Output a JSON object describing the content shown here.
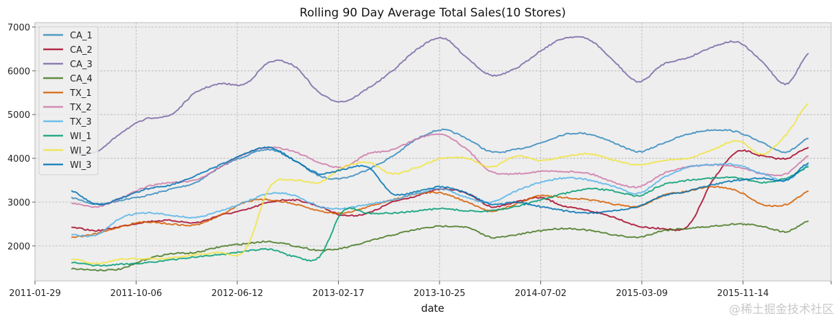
{
  "chart_data": {
    "type": "line",
    "title": "Rolling 90 Day Average Total Sales(10 Stores)",
    "xlabel": "date",
    "ylabel": "",
    "x_type": "date",
    "xlim": [
      "2011-01-29",
      "2016-06-19"
    ],
    "ylim": [
      1200,
      7100
    ],
    "yticks": [
      2000,
      3000,
      4000,
      5000,
      6000,
      7000
    ],
    "xticks": [
      "2011-01-29",
      "2011-10-06",
      "2012-06-12",
      "2013-02-17",
      "2013-10-25",
      "2014-07-02",
      "2015-03-09",
      "2015-11-14"
    ],
    "grid": true,
    "legend_position": "top-left",
    "x": [
      "2011-04-29",
      "2011-07-01",
      "2011-09-01",
      "2011-11-01",
      "2012-01-01",
      "2012-03-01",
      "2012-05-01",
      "2012-07-01",
      "2012-09-01",
      "2012-11-01",
      "2013-01-01",
      "2013-03-01",
      "2013-05-01",
      "2013-07-01",
      "2013-09-01",
      "2013-11-01",
      "2014-01-01",
      "2014-03-01",
      "2014-05-01",
      "2014-07-01",
      "2014-09-01",
      "2014-11-01",
      "2015-01-01",
      "2015-03-01",
      "2015-05-01",
      "2015-07-01",
      "2015-09-01",
      "2015-11-01",
      "2016-01-01",
      "2016-03-01",
      "2016-04-24"
    ],
    "series": [
      {
        "name": "CA_1",
        "color": "#348abd",
        "values": [
          3100,
          2950,
          3050,
          3150,
          3300,
          3450,
          3800,
          4050,
          4200,
          3950,
          3600,
          3550,
          3750,
          4050,
          4450,
          4650,
          4450,
          4150,
          4200,
          4350,
          4550,
          4550,
          4350,
          4150,
          4350,
          4550,
          4650,
          4600,
          4350,
          4150,
          4450
        ]
      },
      {
        "name": "CA_2",
        "color": "#a60628",
        "values": [
          2420,
          2350,
          2450,
          2550,
          2580,
          2530,
          2700,
          2820,
          3000,
          3050,
          2900,
          2700,
          2750,
          3000,
          3150,
          3300,
          3200,
          2900,
          3000,
          3100,
          2900,
          2800,
          2650,
          2450,
          2400,
          2450,
          3500,
          4150,
          4050,
          4000,
          4250
        ]
      },
      {
        "name": "CA_3",
        "color": "#7a68a6",
        "values": [
          4100,
          4150,
          4600,
          4900,
          5000,
          5500,
          5700,
          5700,
          6200,
          6100,
          5500,
          5300,
          5600,
          6000,
          6500,
          6750,
          6300,
          5900,
          6050,
          6450,
          6750,
          6700,
          6200,
          5750,
          6150,
          6300,
          6550,
          6650,
          6200,
          5700,
          6400
        ]
      },
      {
        "name": "CA_4",
        "color": "#467821",
        "values": [
          1480,
          1450,
          1480,
          1700,
          1820,
          1850,
          1980,
          2050,
          2100,
          2000,
          1900,
          1950,
          2100,
          2250,
          2380,
          2450,
          2420,
          2200,
          2250,
          2350,
          2400,
          2350,
          2250,
          2200,
          2350,
          2400,
          2450,
          2500,
          2450,
          2330,
          2570
        ]
      },
      {
        "name": "TX_1",
        "color": "#d55e00",
        "values": [
          2200,
          2280,
          2450,
          2550,
          2500,
          2480,
          2700,
          3000,
          3050,
          2950,
          2800,
          2750,
          2900,
          3050,
          3200,
          3200,
          3000,
          2800,
          2950,
          3150,
          3100,
          3050,
          2950,
          2900,
          3150,
          3250,
          3350,
          3250,
          2950,
          2950,
          3250
        ]
      },
      {
        "name": "TX_2",
        "color": "#cc79a7",
        "values": [
          2970,
          2900,
          3100,
          3350,
          3450,
          3500,
          3800,
          4100,
          4250,
          4150,
          3900,
          3800,
          4100,
          4200,
          4450,
          4550,
          4200,
          3700,
          3650,
          3700,
          3700,
          3650,
          3450,
          3350,
          3650,
          3800,
          3850,
          3800,
          3650,
          3650,
          4050
        ]
      },
      {
        "name": "TX_3",
        "color": "#56b4e9",
        "values": [
          2250,
          2250,
          2650,
          2750,
          2700,
          2650,
          2800,
          3000,
          3200,
          3150,
          2900,
          2850,
          2950,
          3050,
          3200,
          3300,
          3100,
          3000,
          3250,
          3450,
          3550,
          3500,
          3350,
          3200,
          3550,
          3800,
          3850,
          3850,
          3650,
          3500,
          3850
        ]
      },
      {
        "name": "WI_1",
        "color": "#009e73",
        "values": [
          1620,
          1550,
          1580,
          1620,
          1680,
          1750,
          1800,
          1880,
          1920,
          1750,
          1750,
          2800,
          2750,
          2750,
          2800,
          2850,
          2800,
          2800,
          2900,
          3050,
          3200,
          3300,
          3250,
          3150,
          3400,
          3500,
          3550,
          3550,
          3450,
          3550,
          3800
        ]
      },
      {
        "name": "WI_2",
        "color": "#f0e442",
        "values": [
          1700,
          1600,
          1700,
          1700,
          1730,
          1800,
          1850,
          1900,
          3350,
          3500,
          3450,
          3800,
          3900,
          3650,
          3800,
          4000,
          4000,
          3800,
          4050,
          3950,
          4050,
          4100,
          3950,
          3850,
          3950,
          4000,
          4200,
          4400,
          4100,
          4550,
          5250
        ]
      },
      {
        "name": "WI_3",
        "color": "#0072b2",
        "values": [
          3250,
          2950,
          3100,
          3300,
          3400,
          3600,
          3850,
          4100,
          4250,
          3950,
          3650,
          3750,
          3800,
          3200,
          3250,
          3350,
          3200,
          2950,
          3000,
          2900,
          2800,
          2750,
          2800,
          2900,
          3150,
          3250,
          3400,
          3500,
          3550,
          3500,
          3900
        ]
      }
    ]
  },
  "watermark": "@稀土掘金技术社区"
}
